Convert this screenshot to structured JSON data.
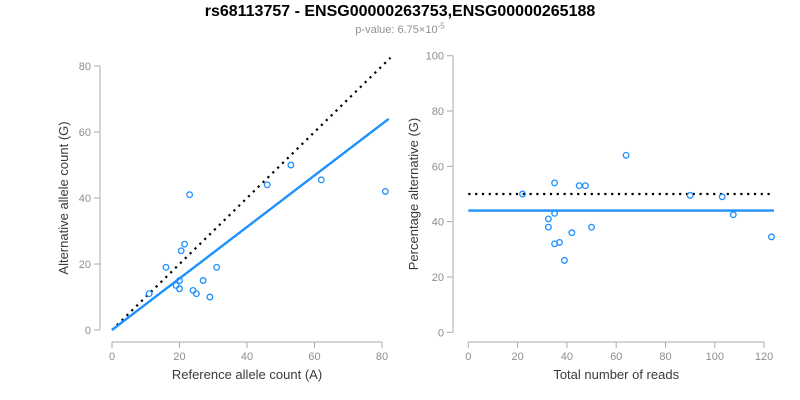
{
  "title": "rs68113757 - ENSG00000263753,ENSG00000265188",
  "subtitle": {
    "text": "p-value: 6.75×10",
    "exponent": "-5"
  },
  "colors": {
    "point_blue": "#1E90FF",
    "trend_blue": "#1E90FF",
    "identity_black": "#000000",
    "axis": "#ababab",
    "tick_label": "#8e8e8e",
    "axis_label": "#3a3a3a",
    "title": "#000000",
    "subtitle": "#919191"
  },
  "chart_data": [
    {
      "type": "scatter",
      "panel": "left",
      "xlabel": "Reference allele count (A)",
      "ylabel": "Alternative allele count (G)",
      "xlim": [
        0,
        82
      ],
      "ylim": [
        0,
        83
      ],
      "xticks": [
        0,
        20,
        40,
        60,
        80
      ],
      "yticks": [
        0,
        20,
        40,
        60,
        80
      ],
      "grid": false,
      "legend": "none",
      "point_color": "#1E90FF",
      "points": [
        [
          11,
          11
        ],
        [
          16,
          19
        ],
        [
          20,
          15
        ],
        [
          19,
          13.5
        ],
        [
          20,
          12.5
        ],
        [
          24,
          12
        ],
        [
          25,
          11
        ],
        [
          27,
          15
        ],
        [
          29,
          10
        ],
        [
          31,
          19
        ],
        [
          20.5,
          24
        ],
        [
          21.5,
          26
        ],
        [
          23,
          41
        ],
        [
          46,
          44
        ],
        [
          53,
          50
        ],
        [
          62,
          45.5
        ],
        [
          81,
          42
        ]
      ],
      "lines": [
        {
          "name": "identity",
          "style": "dotted",
          "color": "#000000",
          "x1": 0,
          "y1": 0,
          "x2": 82.5,
          "y2": 82.5
        },
        {
          "name": "regression",
          "style": "solid",
          "color": "#1E90FF",
          "x1": 0,
          "y1": 0,
          "x2": 82,
          "y2": 64
        }
      ]
    },
    {
      "type": "scatter",
      "panel": "right",
      "xlabel": "Total number of reads",
      "ylabel": "Percentage alternative (G)",
      "xlim": [
        0,
        124
      ],
      "ylim": [
        0,
        100
      ],
      "xticks": [
        0,
        20,
        40,
        60,
        80,
        100,
        120
      ],
      "yticks": [
        0,
        20,
        40,
        60,
        80,
        100
      ],
      "grid": false,
      "legend": "none",
      "point_color": "#1E90FF",
      "points": [
        [
          22,
          50
        ],
        [
          32.5,
          41
        ],
        [
          32.5,
          38
        ],
        [
          35,
          54
        ],
        [
          35,
          43
        ],
        [
          35,
          32
        ],
        [
          37,
          32.5
        ],
        [
          39,
          26
        ],
        [
          42,
          36
        ],
        [
          45,
          53
        ],
        [
          47.5,
          53
        ],
        [
          50,
          38
        ],
        [
          64,
          64
        ],
        [
          90,
          49.5
        ],
        [
          103,
          49
        ],
        [
          107.5,
          42.5
        ],
        [
          123,
          34.5
        ]
      ],
      "lines": [
        {
          "name": "expected-50-percent",
          "style": "dotted",
          "color": "#000000",
          "x1": 0,
          "y1": 50,
          "x2": 123,
          "y2": 50
        },
        {
          "name": "mean-percentage",
          "style": "solid",
          "color": "#1E90FF",
          "x1": 0,
          "y1": 44,
          "x2": 124,
          "y2": 44
        }
      ]
    }
  ]
}
